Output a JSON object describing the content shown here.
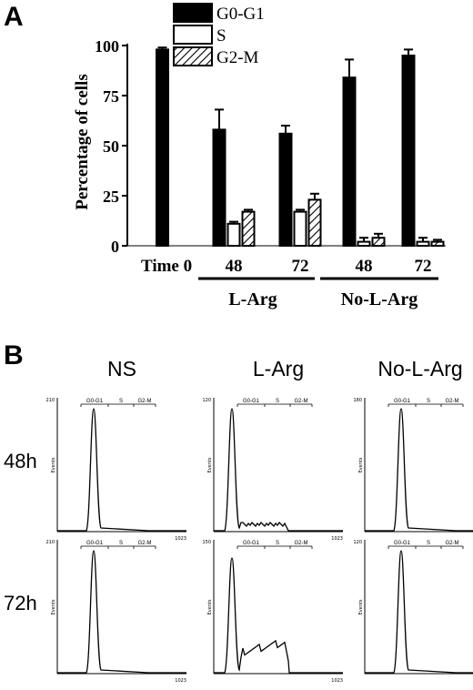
{
  "panels": {
    "a_label": "A",
    "b_label": "B"
  },
  "chart_data": [
    {
      "type": "bar",
      "ylabel": "Percentage of cells",
      "ylim": [
        0,
        100
      ],
      "yticks": [
        "0",
        "25",
        "50",
        "75",
        "100"
      ],
      "categories": [
        "Time 0",
        "48",
        "72",
        "48",
        "72"
      ],
      "groups": [
        {
          "label": "L-Arg",
          "members": [
            1,
            2
          ]
        },
        {
          "label": "No-L-Arg",
          "members": [
            3,
            4
          ]
        }
      ],
      "legend_position": "top",
      "series": [
        {
          "name": "G0-G1",
          "fill": "#000000",
          "values": [
            98,
            58,
            56,
            84,
            95
          ],
          "errors": [
            1,
            10,
            4,
            9,
            3
          ]
        },
        {
          "name": "S",
          "fill": "#ffffff",
          "values": [
            0,
            11,
            17,
            2,
            2
          ],
          "errors": [
            0,
            1,
            1,
            2,
            2
          ]
        },
        {
          "name": "G2-M",
          "fill": "hatch",
          "values": [
            0,
            17,
            23,
            4,
            2
          ],
          "errors": [
            0,
            1,
            3,
            2,
            1
          ]
        }
      ]
    },
    {
      "type": "line",
      "subtype": "flow-cytometry-histograms",
      "column_titles": [
        "NS",
        "L-Arg",
        "No-L-Arg"
      ],
      "row_titles": [
        "48h",
        "72h"
      ],
      "y_axis_label": "Events",
      "x_axis_end_label": "1023",
      "phase_labels": [
        "G0-G1",
        "S",
        "G2-M"
      ],
      "y_max_labels": [
        [
          "210",
          "120",
          "180"
        ],
        [
          "210",
          "150",
          "120"
        ]
      ],
      "shapes": [
        [
          "g1_peak",
          "g1_peak_with_s",
          "g1_peak"
        ],
        [
          "g1_peak",
          "g1_peak_with_large_s",
          "g1_peak"
        ]
      ]
    }
  ]
}
